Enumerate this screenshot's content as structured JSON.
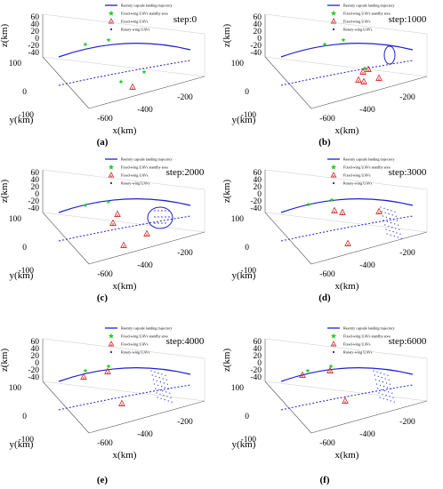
{
  "figure": {
    "panels": [
      {
        "id": "a",
        "label": "(a)",
        "step": "step:0"
      },
      {
        "id": "b",
        "label": "(b)",
        "step": "step:1000"
      },
      {
        "id": "c",
        "label": "(c)",
        "step": "step:2000"
      },
      {
        "id": "d",
        "label": "(d)",
        "step": "step:3000"
      },
      {
        "id": "e",
        "label": "(e)",
        "step": "step:4000"
      },
      {
        "id": "f",
        "label": "(f)",
        "step": "step:6000"
      }
    ]
  },
  "chart_data": {
    "type": "scatter",
    "legend": [
      {
        "label": "Reentry capsule landing trajectory",
        "marker": "solid-line",
        "color": "#1f1fcf"
      },
      {
        "label": "Fixed-wing UAVs standby area",
        "marker": "green-star",
        "color": "#22cc22"
      },
      {
        "label": "Fixed-wing UAVs",
        "marker": "red-triangle",
        "color": "#cc1f1f"
      },
      {
        "label": "Rotary-wing UAVs",
        "marker": "blue-dot",
        "color": "#1f1fcf"
      }
    ],
    "legend_placement": "top",
    "axes": {
      "x": {
        "label": "x(km)",
        "ticks": [
          "-600",
          "-400",
          "-200"
        ]
      },
      "y": {
        "label": "y(km)",
        "ticks": [
          "-100",
          "0",
          "100"
        ]
      },
      "z": {
        "label": "z(km)",
        "ticks": [
          "60",
          "40",
          "20",
          "0",
          "-20",
          "-40"
        ]
      }
    },
    "grid": true
  }
}
